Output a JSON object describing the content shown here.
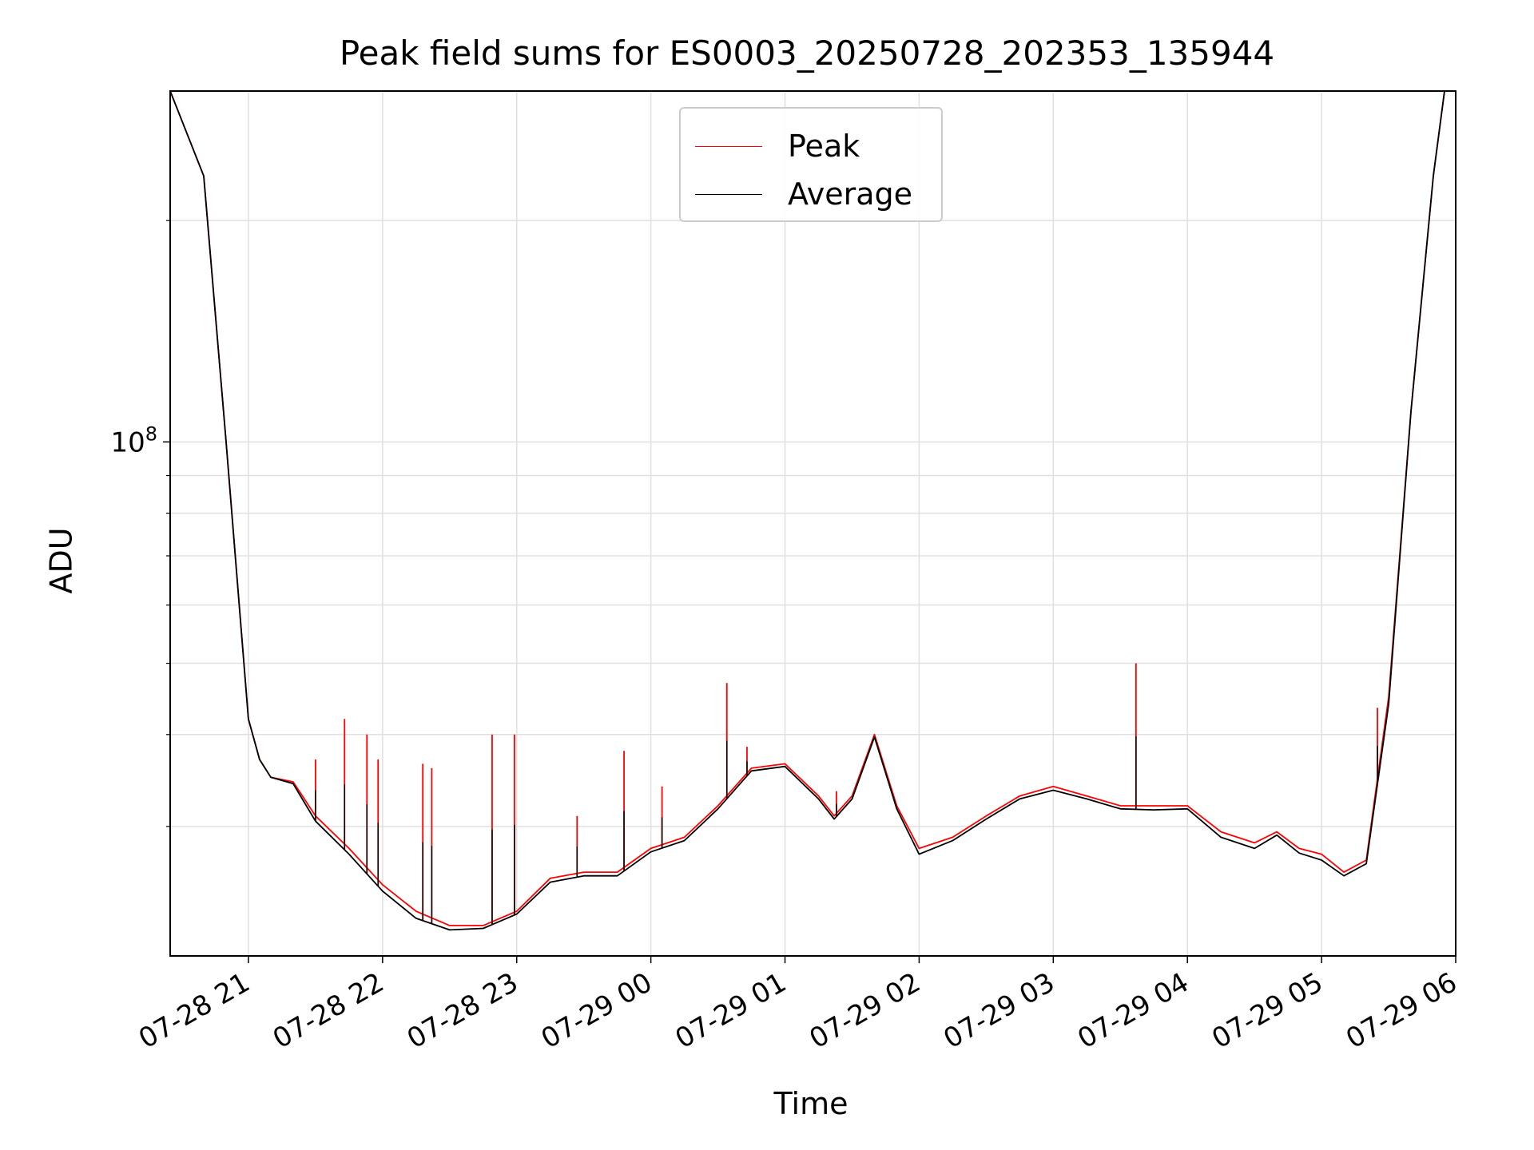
{
  "chart_data": {
    "type": "line",
    "title": "Peak field sums for ES0003_20250728_202353_135944",
    "xlabel": "Time",
    "ylabel": "ADU",
    "yscale": "log",
    "ylim": [
      20000000,
      300000000
    ],
    "yticks_major": [
      {
        "value": 100000000,
        "base": "10",
        "exp": "8"
      }
    ],
    "yticks_minor": [
      30000000,
      40000000,
      50000000,
      60000000,
      70000000,
      80000000,
      90000000,
      200000000
    ],
    "xlim": [
      "2025-07-28T20:25",
      "2025-07-29T06:00"
    ],
    "xticks": [
      {
        "t": "2025-07-28T21:00",
        "label": "07-28 21"
      },
      {
        "t": "2025-07-28T22:00",
        "label": "07-28 22"
      },
      {
        "t": "2025-07-28T23:00",
        "label": "07-28 23"
      },
      {
        "t": "2025-07-29T00:00",
        "label": "07-29 00"
      },
      {
        "t": "2025-07-29T01:00",
        "label": "07-29 01"
      },
      {
        "t": "2025-07-29T02:00",
        "label": "07-29 02"
      },
      {
        "t": "2025-07-29T03:00",
        "label": "07-29 03"
      },
      {
        "t": "2025-07-29T04:00",
        "label": "07-29 04"
      },
      {
        "t": "2025-07-29T05:00",
        "label": "07-29 05"
      },
      {
        "t": "2025-07-29T06:00",
        "label": "07-29 06"
      }
    ],
    "grid": true,
    "legend": {
      "position": "upper-center"
    },
    "series": [
      {
        "name": "Peak",
        "color": "#ff0000",
        "x": [
          "2025-07-28T20:25",
          "2025-07-28T20:40",
          "2025-07-28T20:50",
          "2025-07-28T21:00",
          "2025-07-28T21:05",
          "2025-07-28T21:10",
          "2025-07-28T21:20",
          "2025-07-28T21:30",
          "2025-07-28T21:45",
          "2025-07-28T22:00",
          "2025-07-28T22:15",
          "2025-07-28T22:30",
          "2025-07-28T22:45",
          "2025-07-28T23:00",
          "2025-07-28T23:15",
          "2025-07-28T23:30",
          "2025-07-28T23:45",
          "2025-07-29T00:00",
          "2025-07-29T00:15",
          "2025-07-29T00:30",
          "2025-07-29T00:45",
          "2025-07-29T01:00",
          "2025-07-29T01:15",
          "2025-07-29T01:22",
          "2025-07-29T01:30",
          "2025-07-29T01:40",
          "2025-07-29T01:50",
          "2025-07-29T02:00",
          "2025-07-29T02:15",
          "2025-07-29T02:30",
          "2025-07-29T02:45",
          "2025-07-29T03:00",
          "2025-07-29T03:15",
          "2025-07-29T03:30",
          "2025-07-29T03:45",
          "2025-07-29T04:00",
          "2025-07-29T04:15",
          "2025-07-29T04:30",
          "2025-07-29T04:40",
          "2025-07-29T04:50",
          "2025-07-29T05:00",
          "2025-07-29T05:10",
          "2025-07-29T05:20",
          "2025-07-29T05:30",
          "2025-07-29T05:40",
          "2025-07-29T05:50",
          "2025-07-29T05:55"
        ],
        "y": [
          300000000,
          230000000,
          100000000,
          42000000,
          37000000,
          35000000,
          34500000,
          31000000,
          28000000,
          25000000,
          23000000,
          22000000,
          22000000,
          23000000,
          25500000,
          26000000,
          26000000,
          28000000,
          29000000,
          32000000,
          36000000,
          36500000,
          33000000,
          31000000,
          33000000,
          40000000,
          32000000,
          28000000,
          29000000,
          31000000,
          33000000,
          34000000,
          33000000,
          32000000,
          32000000,
          32000000,
          29500000,
          28500000,
          29500000,
          28000000,
          27500000,
          26000000,
          27000000,
          45000000,
          110000000,
          230000000,
          300000000
        ]
      },
      {
        "name": "Average",
        "color": "#000000",
        "x": [
          "2025-07-28T20:25",
          "2025-07-28T20:40",
          "2025-07-28T20:50",
          "2025-07-28T21:00",
          "2025-07-28T21:05",
          "2025-07-28T21:10",
          "2025-07-28T21:20",
          "2025-07-28T21:30",
          "2025-07-28T21:45",
          "2025-07-28T22:00",
          "2025-07-28T22:15",
          "2025-07-28T22:30",
          "2025-07-28T22:45",
          "2025-07-28T23:00",
          "2025-07-28T23:15",
          "2025-07-28T23:30",
          "2025-07-28T23:45",
          "2025-07-29T00:00",
          "2025-07-29T00:15",
          "2025-07-29T00:30",
          "2025-07-29T00:45",
          "2025-07-29T01:00",
          "2025-07-29T01:15",
          "2025-07-29T01:22",
          "2025-07-29T01:30",
          "2025-07-29T01:40",
          "2025-07-29T01:50",
          "2025-07-29T02:00",
          "2025-07-29T02:15",
          "2025-07-29T02:30",
          "2025-07-29T02:45",
          "2025-07-29T03:00",
          "2025-07-29T03:15",
          "2025-07-29T03:30",
          "2025-07-29T03:45",
          "2025-07-29T04:00",
          "2025-07-29T04:15",
          "2025-07-29T04:30",
          "2025-07-29T04:40",
          "2025-07-29T04:50",
          "2025-07-29T05:00",
          "2025-07-29T05:10",
          "2025-07-29T05:20",
          "2025-07-29T05:30",
          "2025-07-29T05:40",
          "2025-07-29T05:50",
          "2025-07-29T05:55"
        ],
        "y": [
          300000000,
          230000000,
          100000000,
          42000000,
          37000000,
          35000000,
          34300000,
          30500000,
          27500000,
          24500000,
          22500000,
          21700000,
          21800000,
          22800000,
          25200000,
          25700000,
          25700000,
          27700000,
          28700000,
          31700000,
          35700000,
          36200000,
          32700000,
          30700000,
          32700000,
          39700000,
          31700000,
          27500000,
          28700000,
          30700000,
          32700000,
          33600000,
          32700000,
          31700000,
          31600000,
          31700000,
          29000000,
          28000000,
          29200000,
          27600000,
          27000000,
          25700000,
          26700000,
          44000000,
          110000000,
          230000000,
          300000000
        ]
      }
    ],
    "spikes": [
      {
        "t": "2025-07-28T21:30",
        "y": 37000000
      },
      {
        "t": "2025-07-28T21:43",
        "y": 42000000
      },
      {
        "t": "2025-07-28T21:53",
        "y": 40000000
      },
      {
        "t": "2025-07-28T21:58",
        "y": 37000000
      },
      {
        "t": "2025-07-28T22:18",
        "y": 36500000
      },
      {
        "t": "2025-07-28T22:22",
        "y": 36000000
      },
      {
        "t": "2025-07-28T22:49",
        "y": 40000000
      },
      {
        "t": "2025-07-28T22:59",
        "y": 40000000
      },
      {
        "t": "2025-07-28T23:27",
        "y": 31000000
      },
      {
        "t": "2025-07-28T23:48",
        "y": 38000000
      },
      {
        "t": "2025-07-29T00:05",
        "y": 34000000
      },
      {
        "t": "2025-07-29T00:34",
        "y": 47000000
      },
      {
        "t": "2025-07-29T00:43",
        "y": 38500000
      },
      {
        "t": "2025-07-29T01:23",
        "y": 33500000
      },
      {
        "t": "2025-07-29T03:37",
        "y": 50000000
      },
      {
        "t": "2025-07-29T05:25",
        "y": 43500000
      }
    ]
  }
}
